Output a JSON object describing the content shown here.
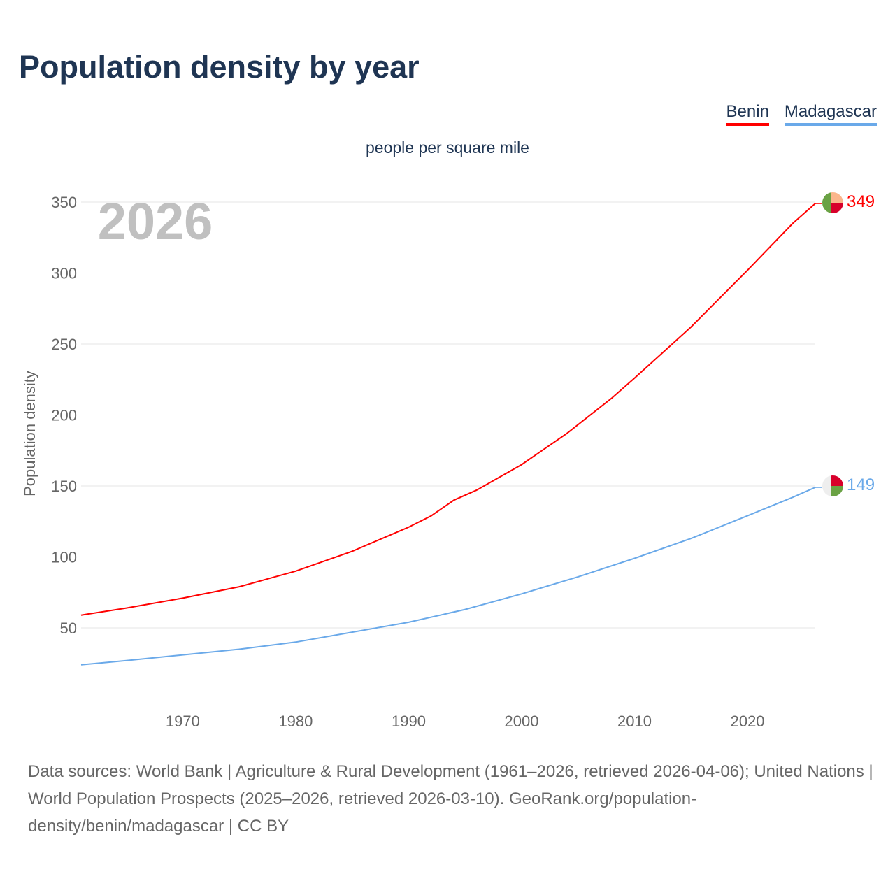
{
  "title": "Population density by year",
  "subtitle": "people per square mile",
  "year_watermark": "2026",
  "source_text": "Data sources: World Bank | Agriculture & Rural Development (1961–2026, retrieved 2026-04-06); United Nations | World Population Prospects (2025–2026, retrieved 2026-03-10). GeoRank.org/population-density/benin/madagascar | CC BY",
  "chart_data": {
    "type": "line",
    "title": "Population density by year",
    "subtitle": "people per square mile",
    "xlabel": "",
    "ylabel": "Population density",
    "xlim": [
      1961,
      2026
    ],
    "ylim": [
      0,
      370
    ],
    "xticks": [
      1970,
      1980,
      1990,
      2000,
      2010,
      2020
    ],
    "yticks": [
      50,
      100,
      150,
      200,
      250,
      300,
      350
    ],
    "grid": true,
    "legend_position": "top-right",
    "series": [
      {
        "name": "Benin",
        "color": "#ff0000",
        "end_label": "349",
        "flag_icon": "benin-flag-icon",
        "x": [
          1961,
          1965,
          1970,
          1975,
          1980,
          1985,
          1990,
          1992,
          1994,
          1996,
          2000,
          2004,
          2008,
          2010,
          2015,
          2020,
          2024,
          2026
        ],
        "y": [
          59,
          64,
          71,
          79,
          90,
          104,
          121,
          129,
          140,
          147,
          165,
          187,
          212,
          226,
          262,
          302,
          335,
          349
        ]
      },
      {
        "name": "Madagascar",
        "color": "#6aa9e9",
        "end_label": "149",
        "flag_icon": "madagascar-flag-icon",
        "x": [
          1961,
          1965,
          1970,
          1975,
          1980,
          1985,
          1990,
          1995,
          2000,
          2005,
          2010,
          2015,
          2020,
          2024,
          2026
        ],
        "y": [
          24,
          27,
          31,
          35,
          40,
          47,
          54,
          63,
          74,
          86,
          99,
          113,
          129,
          142,
          149
        ]
      }
    ]
  }
}
